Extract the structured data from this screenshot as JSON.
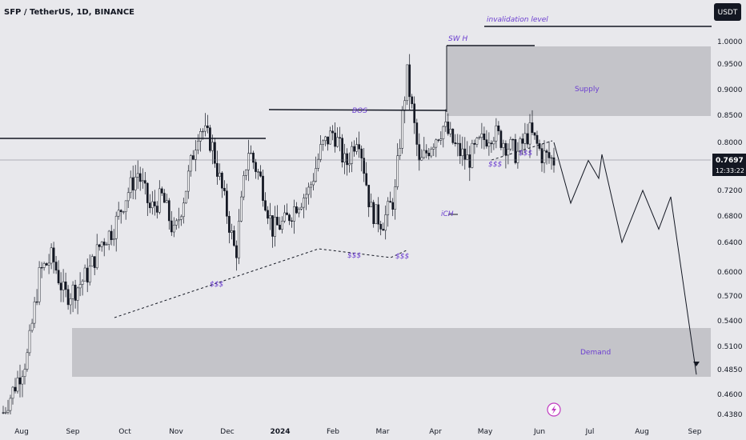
{
  "header": {
    "title": "SFP / TetherUS, 1D, BINANCE",
    "currency_button": "USDT"
  },
  "chart_data": {
    "type": "candlestick",
    "title": "SFP / TetherUS, 1D, BINANCE",
    "y_ticks": [
      "1.0000",
      "0.9500",
      "0.9000",
      "0.8500",
      "0.8000",
      "0.7200",
      "0.6800",
      "0.6400",
      "0.6000",
      "0.5700",
      "0.5400",
      "0.5100",
      "0.4850",
      "0.4600",
      "0.4380"
    ],
    "y_tick_values": [
      1.0,
      0.95,
      0.9,
      0.85,
      0.8,
      0.72,
      0.68,
      0.64,
      0.6,
      0.57,
      0.54,
      0.51,
      0.485,
      0.46,
      0.438
    ],
    "x_labels": [
      "Aug",
      "Sep",
      "Oct",
      "Nov",
      "Dec",
      "2024",
      "Feb",
      "Mar",
      "Apr",
      "May",
      "Jun",
      "Jul",
      "Aug",
      "Sep"
    ],
    "current_price": "0.7697",
    "countdown": "12:33:22",
    "price_path": [
      0.44,
      0.47,
      0.5,
      0.6,
      0.62,
      0.57,
      0.58,
      0.6,
      0.64,
      0.66,
      0.71,
      0.75,
      0.69,
      0.71,
      0.65,
      0.73,
      0.83,
      0.8,
      0.71,
      0.62,
      0.79,
      0.74,
      0.66,
      0.67,
      0.7,
      0.72,
      0.79,
      0.82,
      0.76,
      0.82,
      0.69,
      0.67,
      0.71,
      0.93,
      0.76,
      0.8,
      0.83,
      0.79,
      0.77,
      0.8,
      0.82,
      0.8,
      0.78,
      0.82,
      0.78,
      0.77
    ],
    "zones": [
      {
        "label": "Supply",
        "low": 0.85,
        "high": 0.98
      },
      {
        "label": "Demand",
        "low": 0.48,
        "high": 0.53
      }
    ],
    "annotations": [
      "invalidation level",
      "SW H",
      "BOS",
      "iCH",
      "$$$",
      "$$$",
      "$$$",
      "$$$",
      "$$$"
    ],
    "projection": [
      0.8,
      0.7,
      0.77,
      0.74,
      0.78,
      0.64,
      0.72,
      0.66,
      0.71,
      0.48
    ],
    "grid": false
  },
  "footer": {
    "flash_icon": "flash-icon"
  }
}
